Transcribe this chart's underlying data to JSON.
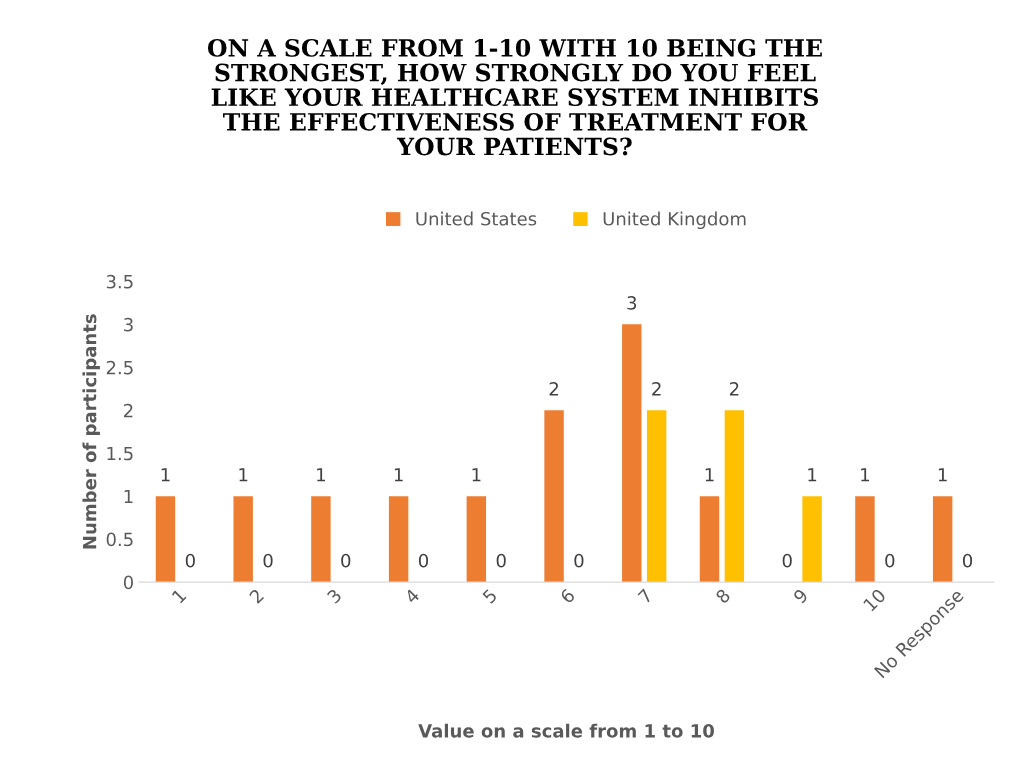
{
  "chart_data": {
    "type": "bar",
    "title": "ON A SCALE FROM 1-10 WITH 10 BEING THE\nSTRONGEST, HOW STRONGLY DO YOU FEEL\nLIKE YOUR HEALTHCARE SYSTEM INHIBITS\nTHE EFFECTIVENESS OF TREATMENT FOR\nYOUR PATIENTS?",
    "xlabel": "Value on a scale from 1 to 10",
    "ylabel": "Number of participants",
    "categories": [
      "1",
      "2",
      "3",
      "4",
      "5",
      "6",
      "7",
      "8",
      "9",
      "10",
      "No Response"
    ],
    "series": [
      {
        "name": "United States",
        "color": "#ed7d31",
        "values": [
          1,
          1,
          1,
          1,
          1,
          2,
          3,
          1,
          0,
          1,
          1
        ]
      },
      {
        "name": "United Kingdom",
        "color": "#ffc000",
        "values": [
          0,
          0,
          0,
          0,
          0,
          0,
          2,
          2,
          1,
          0,
          0
        ]
      }
    ],
    "ylim": [
      0,
      3.5
    ],
    "yticks": [
      0,
      0.5,
      1,
      1.5,
      2,
      2.5,
      3,
      3.5
    ],
    "data_labels": true,
    "grid": false,
    "legend": "top"
  }
}
